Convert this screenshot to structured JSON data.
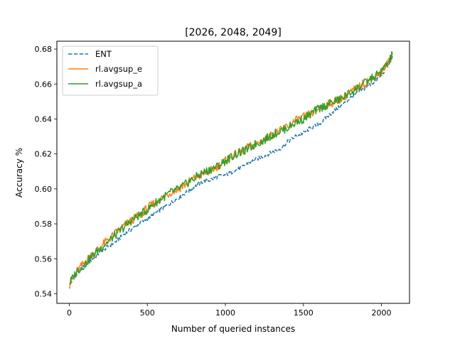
{
  "chart_data": {
    "type": "line",
    "title": "[2026, 2048, 2049]",
    "xlabel": "Number of queried instances",
    "ylabel": "Accuracy %",
    "xlim": [
      -80,
      2180
    ],
    "ylim": [
      0.5345,
      0.6845
    ],
    "xticks": [
      0,
      500,
      1000,
      1500,
      2000
    ],
    "xtick_labels": [
      "0",
      "500",
      "1000",
      "1500",
      "2000"
    ],
    "yticks": [
      0.54,
      0.56,
      0.58,
      0.6,
      0.62,
      0.64,
      0.66,
      0.68
    ],
    "ytick_labels": [
      "0.54",
      "0.56",
      "0.58",
      "0.60",
      "0.62",
      "0.64",
      "0.66",
      "0.68"
    ],
    "grid": false,
    "legend_position": "upper-left",
    "series": [
      {
        "name": "ENT",
        "color": "#1f77b4",
        "dash": "dashed",
        "x": [
          0,
          50,
          100,
          150,
          200,
          250,
          300,
          350,
          400,
          450,
          500,
          550,
          600,
          650,
          700,
          750,
          800,
          850,
          900,
          950,
          1000,
          1050,
          1100,
          1150,
          1200,
          1250,
          1300,
          1350,
          1400,
          1450,
          1500,
          1550,
          1600,
          1650,
          1700,
          1750,
          1800,
          1850,
          1900,
          1950,
          2000,
          2050,
          2070
        ],
        "y": [
          0.545,
          0.552,
          0.556,
          0.56,
          0.564,
          0.567,
          0.57,
          0.574,
          0.577,
          0.58,
          0.583,
          0.586,
          0.589,
          0.592,
          0.595,
          0.598,
          0.601,
          0.604,
          0.605,
          0.607,
          0.608,
          0.61,
          0.612,
          0.615,
          0.617,
          0.619,
          0.621,
          0.623,
          0.627,
          0.63,
          0.632,
          0.635,
          0.637,
          0.641,
          0.645,
          0.648,
          0.652,
          0.655,
          0.658,
          0.661,
          0.665,
          0.672,
          0.676
        ]
      },
      {
        "name": "rl.avgsup_e",
        "color": "#ff7f0e",
        "dash": "solid",
        "x": [
          0,
          50,
          100,
          150,
          200,
          250,
          300,
          350,
          400,
          450,
          500,
          550,
          600,
          650,
          700,
          750,
          800,
          850,
          900,
          950,
          1000,
          1050,
          1100,
          1150,
          1200,
          1250,
          1300,
          1350,
          1400,
          1450,
          1500,
          1550,
          1600,
          1650,
          1700,
          1750,
          1800,
          1850,
          1900,
          1950,
          2000,
          2050,
          2070
        ],
        "y": [
          0.545,
          0.553,
          0.558,
          0.563,
          0.567,
          0.571,
          0.575,
          0.579,
          0.582,
          0.585,
          0.589,
          0.592,
          0.595,
          0.598,
          0.6,
          0.603,
          0.606,
          0.608,
          0.61,
          0.613,
          0.616,
          0.619,
          0.621,
          0.624,
          0.626,
          0.628,
          0.631,
          0.633,
          0.636,
          0.639,
          0.641,
          0.643,
          0.646,
          0.648,
          0.65,
          0.652,
          0.655,
          0.658,
          0.661,
          0.664,
          0.667,
          0.673,
          0.677
        ]
      },
      {
        "name": "rl.avgsup_a",
        "color": "#2ca02c",
        "dash": "solid",
        "x": [
          0,
          50,
          100,
          150,
          200,
          250,
          300,
          350,
          400,
          450,
          500,
          550,
          600,
          650,
          700,
          750,
          800,
          850,
          900,
          950,
          1000,
          1050,
          1100,
          1150,
          1200,
          1250,
          1300,
          1350,
          1400,
          1450,
          1500,
          1550,
          1600,
          1650,
          1700,
          1750,
          1800,
          1850,
          1900,
          1950,
          2000,
          2050,
          2070
        ],
        "y": [
          0.546,
          0.553,
          0.557,
          0.562,
          0.566,
          0.57,
          0.574,
          0.578,
          0.582,
          0.585,
          0.588,
          0.592,
          0.595,
          0.598,
          0.6,
          0.603,
          0.606,
          0.609,
          0.611,
          0.613,
          0.616,
          0.619,
          0.621,
          0.623,
          0.626,
          0.628,
          0.631,
          0.633,
          0.635,
          0.638,
          0.64,
          0.643,
          0.646,
          0.648,
          0.65,
          0.652,
          0.655,
          0.658,
          0.661,
          0.664,
          0.667,
          0.673,
          0.677
        ]
      }
    ]
  }
}
